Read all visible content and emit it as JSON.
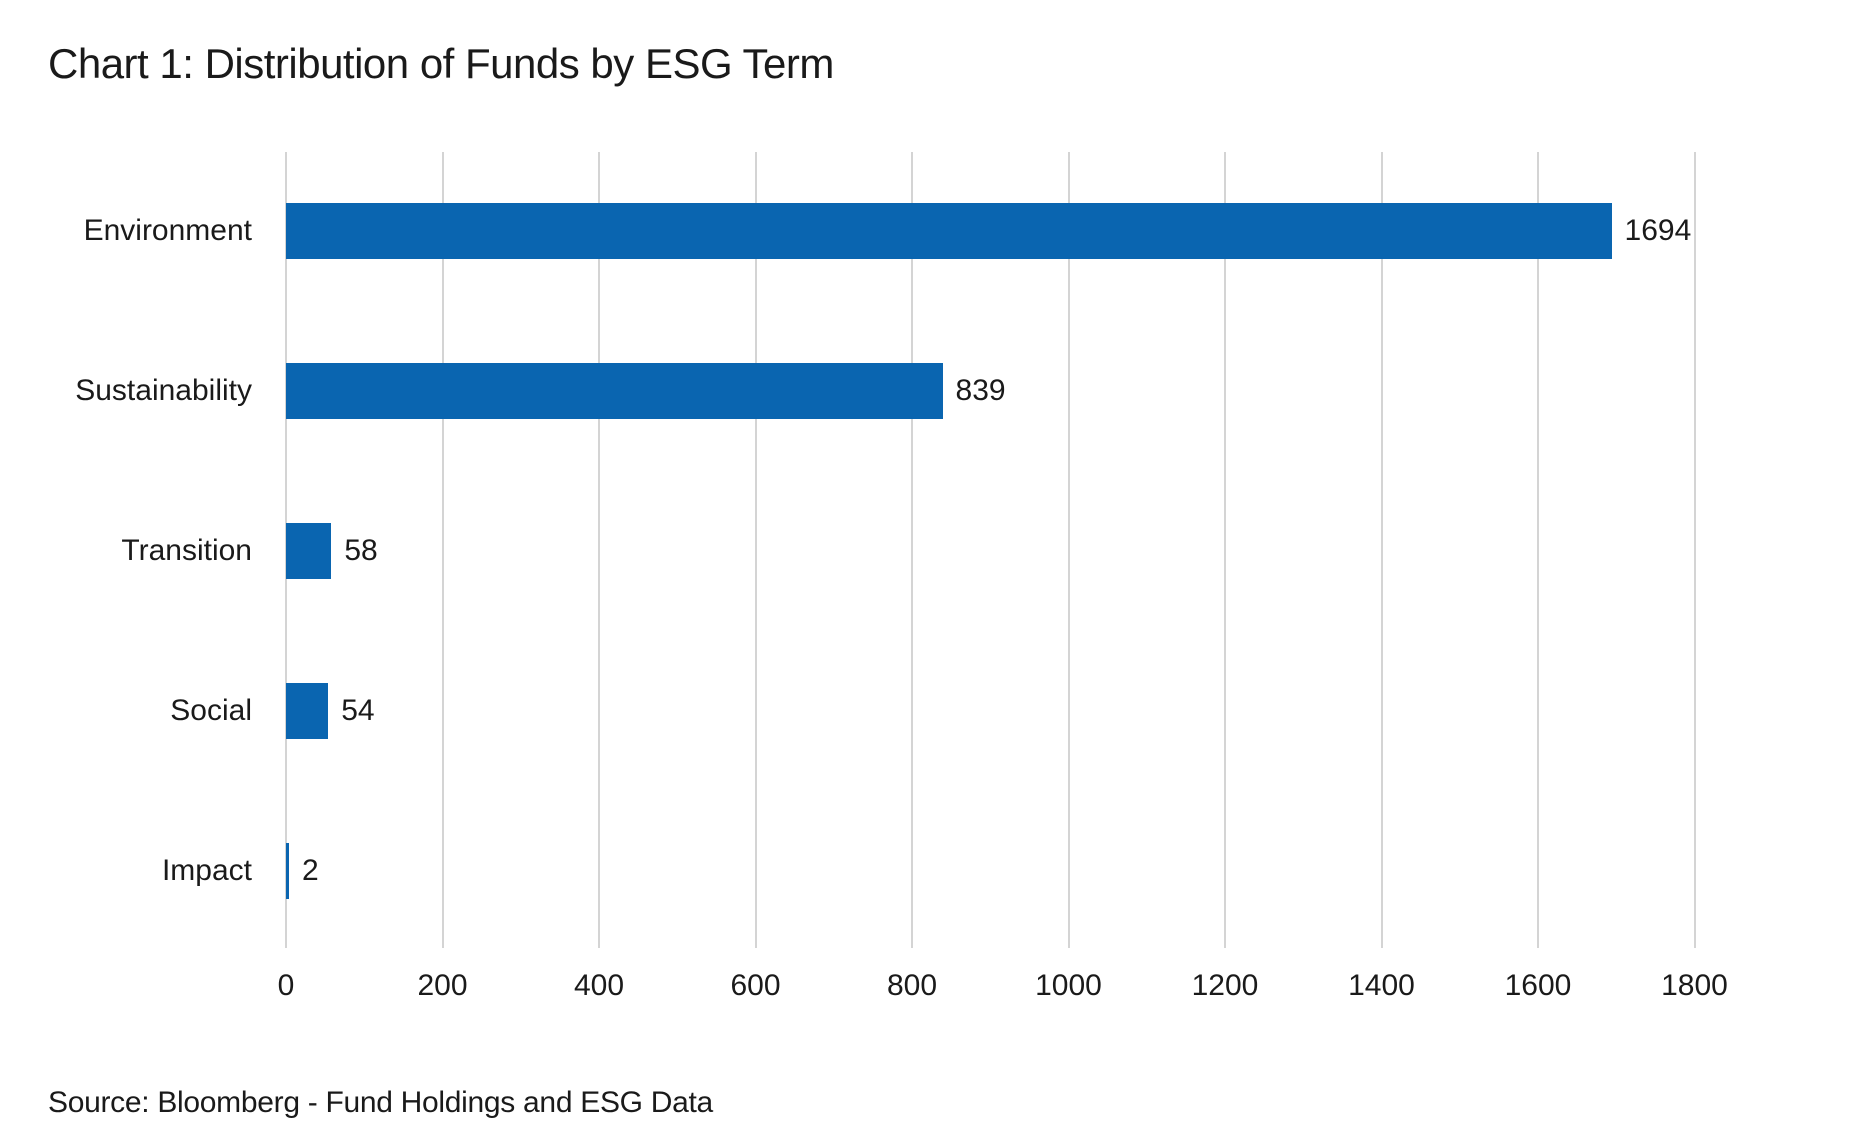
{
  "title": "Chart 1: Distribution of Funds by ESG Term",
  "source": "Source: Bloomberg - Fund Holdings and ESG Data",
  "colors": {
    "bar": "#0a65b0",
    "grid": "#d4d4d4",
    "text": "#1a1a1a",
    "background": "#ffffff"
  },
  "chart_data": {
    "type": "bar",
    "orientation": "horizontal",
    "title": "Chart 1: Distribution of Funds by ESG Term",
    "categories": [
      "Environment",
      "Sustainability",
      "Transition",
      "Social",
      "Impact"
    ],
    "values": [
      1694,
      839,
      58,
      54,
      2
    ],
    "data_labels": [
      "1694",
      "839",
      "58",
      "54",
      "2"
    ],
    "xlabel": "",
    "ylabel": "",
    "xlim": [
      0,
      1800
    ],
    "xticks": [
      0,
      200,
      400,
      600,
      800,
      1000,
      1200,
      1400,
      1600,
      1800
    ],
    "grid": "vertical-only",
    "legend": "none",
    "bar_color": "#0a65b0"
  }
}
